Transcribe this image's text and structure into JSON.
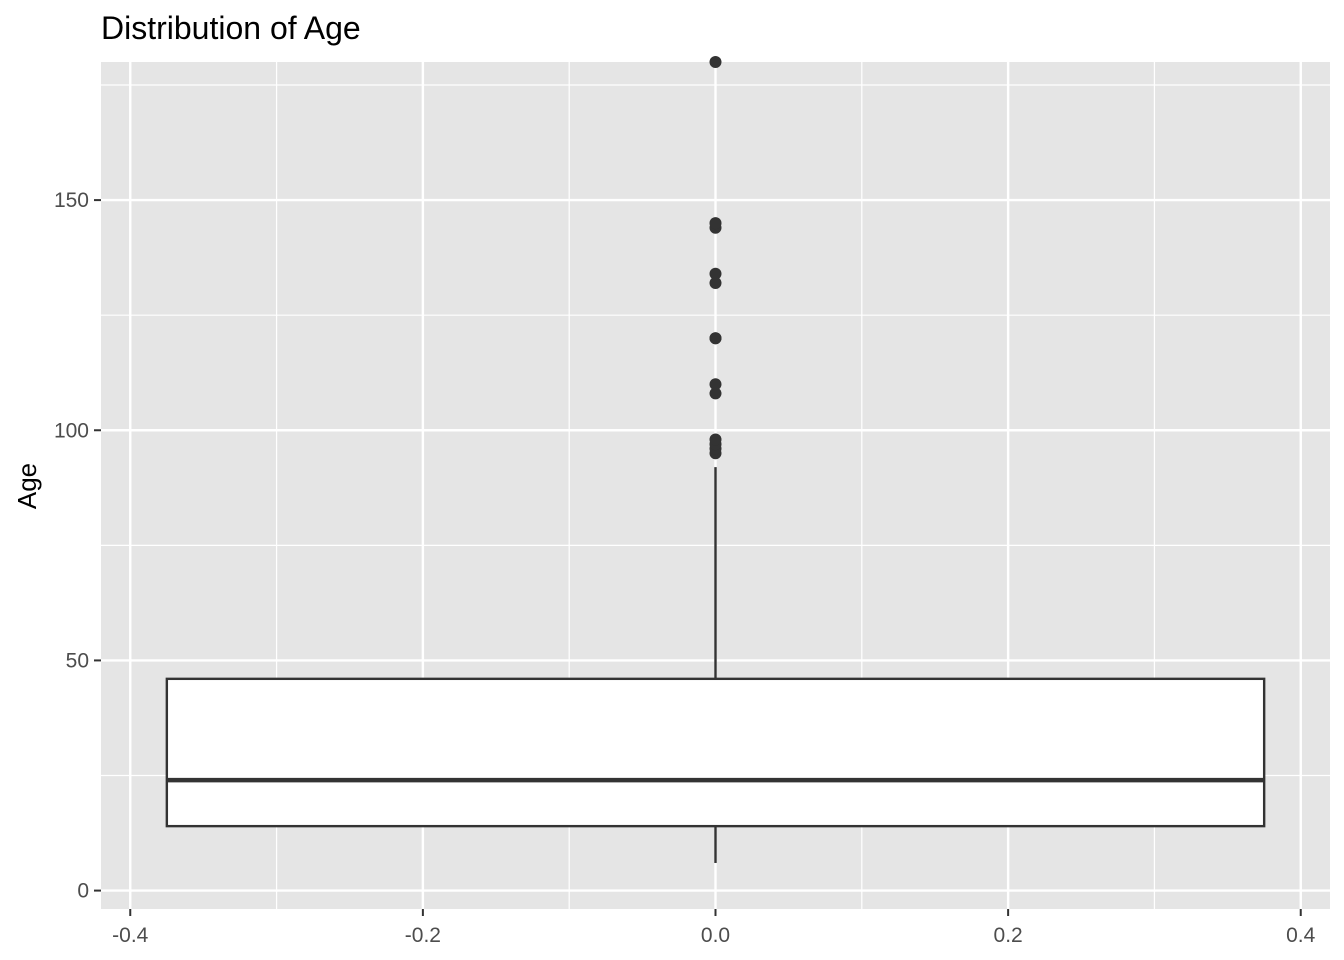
{
  "chart_data": {
    "type": "boxplot",
    "title": "Distribution of Age",
    "xlabel": "",
    "ylabel": "Age",
    "xlim": [
      -0.42,
      0.42
    ],
    "ylim": [
      -4,
      180
    ],
    "x_ticks": [
      -0.4,
      -0.2,
      0.0,
      0.2,
      0.4
    ],
    "x_tick_labels": [
      "-0.4",
      "-0.2",
      "0.0",
      "0.2",
      "0.4"
    ],
    "y_ticks": [
      0,
      50,
      100,
      150
    ],
    "y_tick_labels": [
      "0",
      "50",
      "100",
      "150"
    ],
    "grid": true,
    "box": {
      "x_center": 0.0,
      "x_left": -0.375,
      "x_right": 0.375,
      "whisker_low": 6,
      "q1": 14,
      "median": 24,
      "q3": 46,
      "whisker_high": 92
    },
    "outliers": [
      95,
      96,
      97,
      98,
      108,
      110,
      120,
      120,
      132,
      134,
      144,
      145,
      180
    ],
    "colors": {
      "panel_bg": "#e5e5e5",
      "grid": "#ffffff",
      "box_fill": "#ffffff",
      "box_line": "#333333",
      "point": "#333333",
      "tick": "#333333"
    }
  }
}
